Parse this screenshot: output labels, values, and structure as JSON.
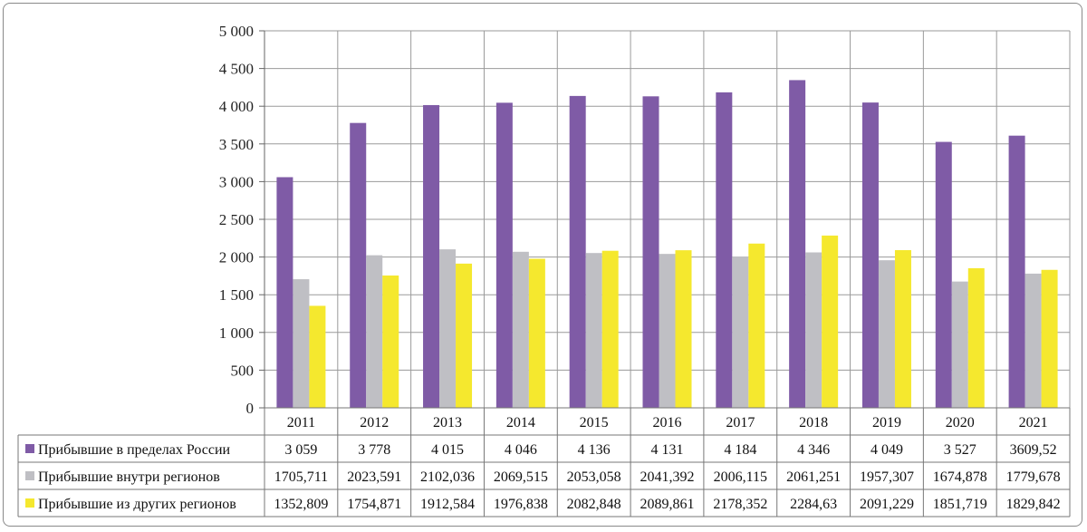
{
  "chart_data": {
    "type": "bar",
    "categories": [
      "2011",
      "2012",
      "2013",
      "2014",
      "2015",
      "2016",
      "2017",
      "2018",
      "2019",
      "2020",
      "2021"
    ],
    "ylim": [
      0,
      5000
    ],
    "yticks": [
      0,
      500,
      1000,
      1500,
      2000,
      2500,
      3000,
      3500,
      4000,
      4500,
      5000
    ],
    "ytick_labels": [
      "0",
      "500",
      "1 000",
      "1 500",
      "2 000",
      "2 500",
      "3 000",
      "3 500",
      "4 000",
      "4 500",
      "5 000"
    ],
    "grid": true,
    "legend": "data-table-left",
    "series": [
      {
        "name": "Прибывшие в пределах России",
        "color": "#7f5ba6",
        "values": [
          3059,
          3778,
          4015,
          4046,
          4136,
          4131,
          4184,
          4346,
          4049,
          3527,
          3609.52
        ],
        "labels": [
          "3 059",
          "3 778",
          "4 015",
          "4 046",
          "4 136",
          "4 131",
          "4 184",
          "4 346",
          "4 049",
          "3 527",
          "3609,52"
        ]
      },
      {
        "name": "Прибывшие внутри регионов",
        "color": "#bfbfc4",
        "values": [
          1705.711,
          2023.591,
          2102.036,
          2069.515,
          2053.058,
          2041.392,
          2006.115,
          2061.251,
          1957.307,
          1674.878,
          1779.678
        ],
        "labels": [
          "1705,711",
          "2023,591",
          "2102,036",
          "2069,515",
          "2053,058",
          "2041,392",
          "2006,115",
          "2061,251",
          "1957,307",
          "1674,878",
          "1779,678"
        ]
      },
      {
        "name": "Прибывшие из других регионов",
        "color": "#f5e82e",
        "values": [
          1352.809,
          1754.871,
          1912.584,
          1976.838,
          2082.848,
          2089.861,
          2178.352,
          2284.63,
          2091.229,
          1851.719,
          1829.842
        ],
        "labels": [
          "1352,809",
          "1754,871",
          "1912,584",
          "1976,838",
          "2082,848",
          "2089,861",
          "2178,352",
          "2284,63",
          "2091,229",
          "1851,719",
          "1829,842"
        ]
      }
    ]
  }
}
